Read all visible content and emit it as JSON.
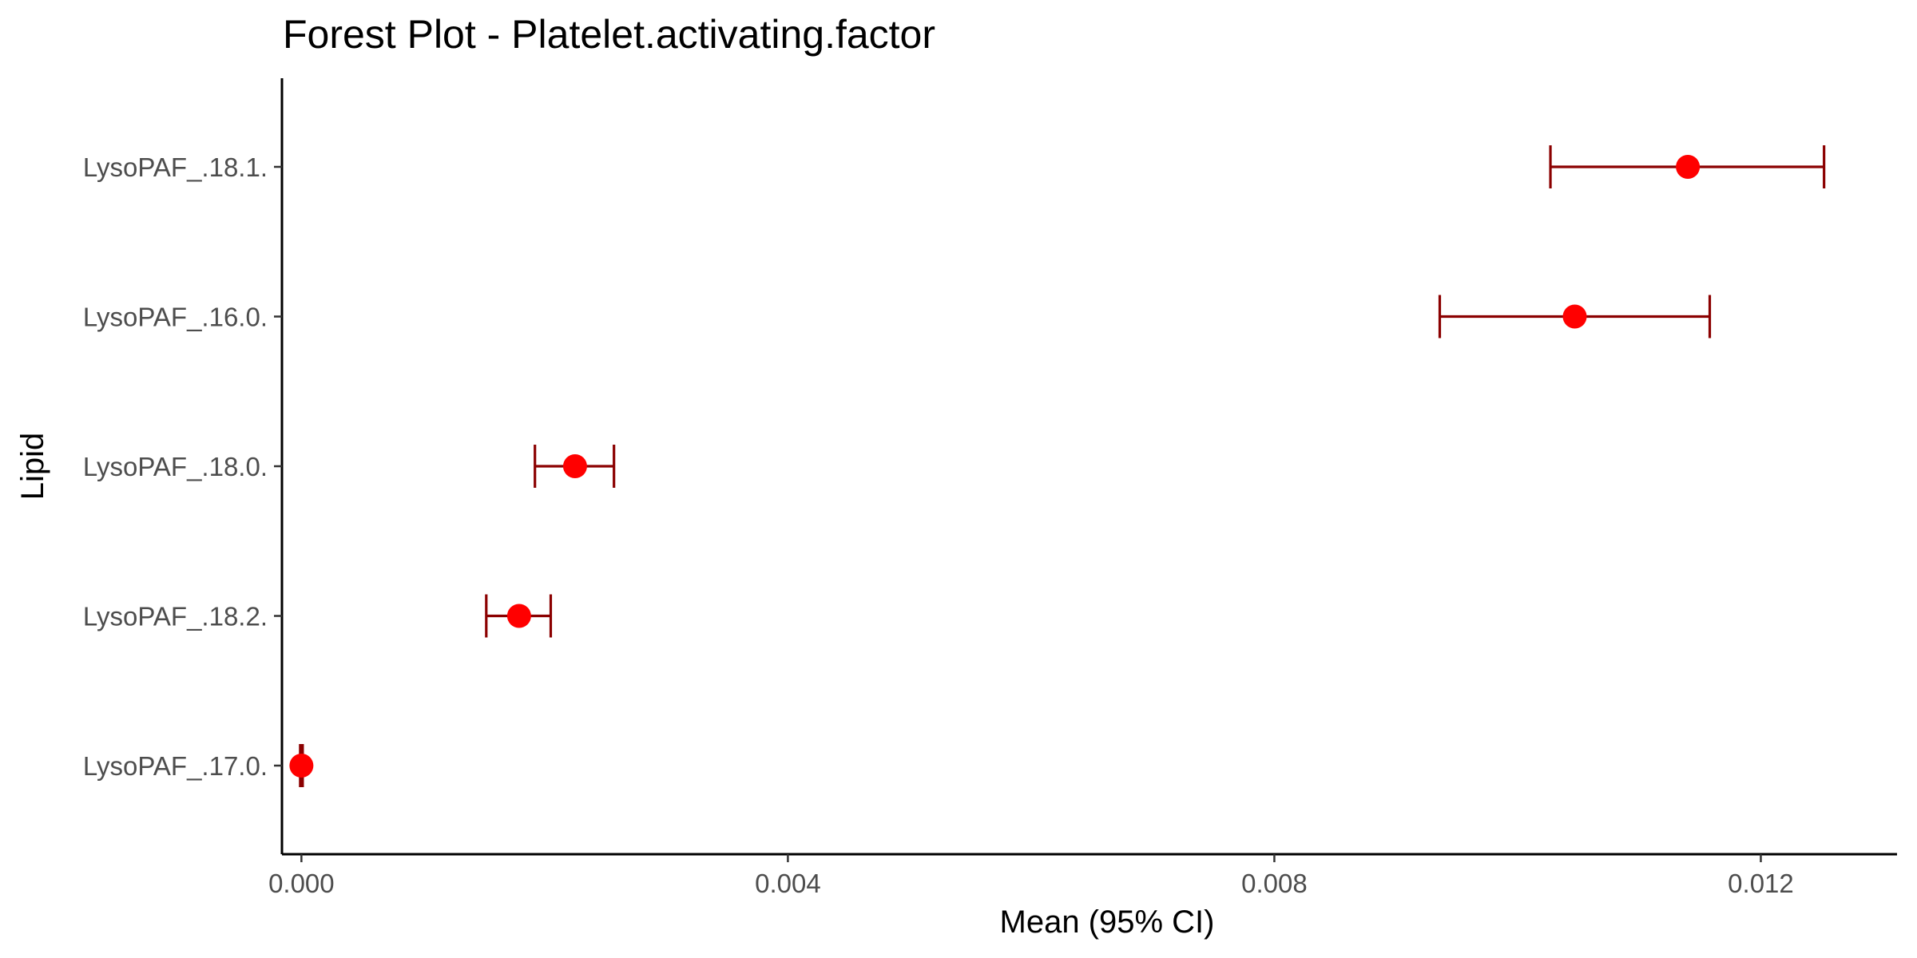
{
  "chart_data": {
    "type": "forest",
    "title": "Forest Plot - Platelet.activating.factor",
    "xlabel": "Mean (95% CI)",
    "ylabel": "Lipid",
    "xlim": [
      -0.00016,
      0.01312
    ],
    "x_ticks": [
      0.0,
      0.004,
      0.008,
      0.012
    ],
    "x_tick_labels": [
      "0.000",
      "0.004",
      "0.008",
      "0.012"
    ],
    "grid": false,
    "legend": "none",
    "point_color": "#ff0000",
    "interval_color": "#8b0000",
    "rows": [
      {
        "label": "LysoPAF_.18.1.",
        "mean": 0.0114,
        "lower": 0.01027,
        "upper": 0.01252
      },
      {
        "label": "LysoPAF_.16.0.",
        "mean": 0.01047,
        "lower": 0.00936,
        "upper": 0.01158
      },
      {
        "label": "LysoPAF_.18.0.",
        "mean": 0.00225,
        "lower": 0.00192,
        "upper": 0.00257
      },
      {
        "label": "LysoPAF_.18.2.",
        "mean": 0.00179,
        "lower": 0.00152,
        "upper": 0.00205
      },
      {
        "label": "LysoPAF_.17.0.",
        "mean": 0.0,
        "lower": 0.0,
        "upper": 0.0
      }
    ]
  }
}
